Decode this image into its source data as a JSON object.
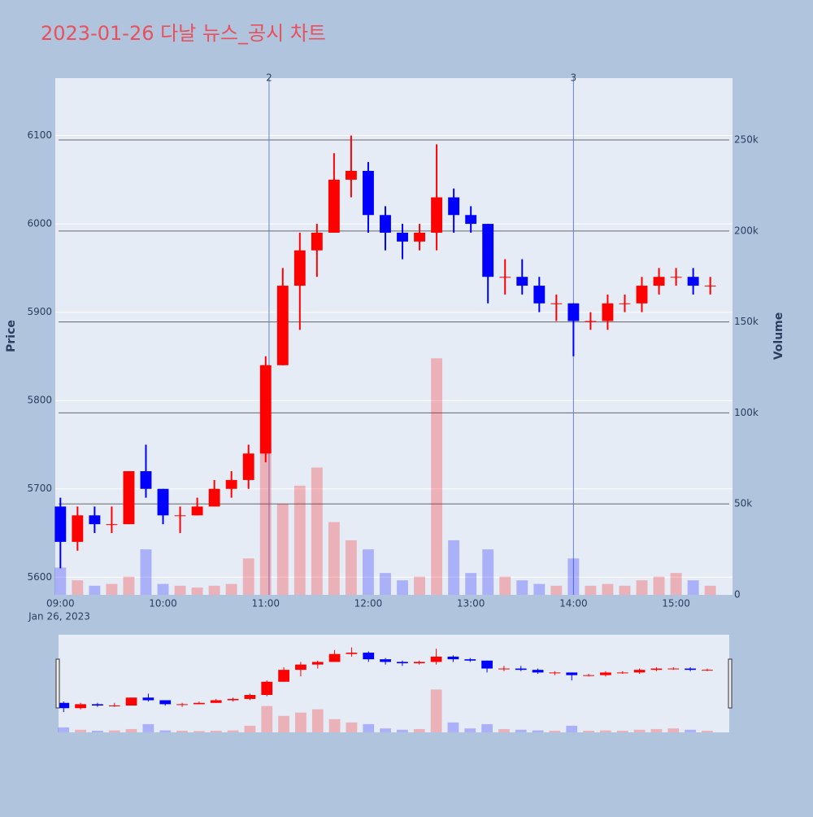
{
  "chart_data": {
    "type": "candlestick",
    "title": "2023-01-26 다날 뉴스_공시 차트",
    "y_label": "Price",
    "y2_label": "Volume",
    "x_date_label": "Jan 26, 2023",
    "increasing_color": "#ff0000",
    "decreasing_color": "#0000ff",
    "x": [
      "09:00",
      "09:10",
      "09:20",
      "09:30",
      "09:40",
      "09:50",
      "10:00",
      "10:10",
      "10:20",
      "10:30",
      "10:40",
      "10:50",
      "11:00",
      "11:10",
      "11:20",
      "11:30",
      "11:40",
      "11:50",
      "12:00",
      "12:10",
      "12:20",
      "12:30",
      "12:40",
      "12:50",
      "13:00",
      "13:10",
      "13:20",
      "13:30",
      "13:40",
      "13:50",
      "14:00",
      "14:10",
      "14:20",
      "14:30",
      "14:40",
      "14:50",
      "15:00",
      "15:10",
      "15:20"
    ],
    "open": [
      5680,
      5640,
      5670,
      5660,
      5660,
      5720,
      5700,
      5670,
      5670,
      5680,
      5700,
      5710,
      5740,
      5840,
      5930,
      5970,
      5990,
      6050,
      6060,
      6010,
      5990,
      5980,
      5990,
      6030,
      6010,
      6000,
      5940,
      5940,
      5930,
      5910,
      5910,
      5890,
      5890,
      5910,
      5910,
      5930,
      5940,
      5940,
      5930
    ],
    "high": [
      5690,
      5680,
      5680,
      5680,
      5720,
      5750,
      5700,
      5680,
      5690,
      5710,
      5720,
      5750,
      5850,
      5950,
      5990,
      6000,
      6080,
      6100,
      6070,
      6020,
      6000,
      6000,
      6090,
      6040,
      6020,
      6000,
      5960,
      5960,
      5940,
      5920,
      5910,
      5900,
      5920,
      5920,
      5940,
      5950,
      5950,
      5950,
      5940
    ],
    "low": [
      5610,
      5630,
      5650,
      5650,
      5660,
      5690,
      5660,
      5650,
      5670,
      5680,
      5690,
      5700,
      5730,
      5840,
      5880,
      5940,
      5990,
      6030,
      5990,
      5970,
      5960,
      5970,
      5970,
      5990,
      5990,
      5910,
      5920,
      5920,
      5900,
      5890,
      5850,
      5880,
      5880,
      5900,
      5900,
      5920,
      5930,
      5920,
      5920
    ],
    "close": [
      5640,
      5670,
      5660,
      5660,
      5720,
      5700,
      5670,
      5670,
      5680,
      5700,
      5710,
      5740,
      5840,
      5930,
      5970,
      5990,
      6050,
      6060,
      6010,
      5990,
      5980,
      5990,
      6030,
      6010,
      6000,
      5940,
      5940,
      5930,
      5910,
      5910,
      5890,
      5890,
      5910,
      5910,
      5930,
      5940,
      5940,
      5930,
      5930
    ],
    "volume": [
      15000,
      8000,
      5000,
      6000,
      10000,
      25000,
      6000,
      5000,
      4000,
      5000,
      6000,
      20000,
      80000,
      50000,
      60000,
      70000,
      40000,
      30000,
      25000,
      12000,
      8000,
      10000,
      130000,
      30000,
      12000,
      25000,
      10000,
      8000,
      6000,
      5000,
      20000,
      5000,
      6000,
      5000,
      8000,
      10000,
      12000,
      8000,
      5000
    ],
    "xlim": [
      "08:57",
      "15:33"
    ],
    "xticks": [
      "09:00",
      "10:00",
      "11:00",
      "12:00",
      "13:00",
      "14:00",
      "15:00"
    ],
    "ylim": [
      5580,
      6165
    ],
    "yticks": [
      5600,
      5700,
      5800,
      5900,
      6000,
      6100
    ],
    "y2lim": [
      0,
      284000
    ],
    "y2ticks": [
      0,
      {
        "value": 50000,
        "label": "50k"
      },
      {
        "value": 100000,
        "label": "100k"
      },
      {
        "value": 150000,
        "label": "150k"
      },
      {
        "value": 200000,
        "label": "200k"
      },
      {
        "value": 250000,
        "label": "250k"
      }
    ],
    "annotations": [
      {
        "x": "11:02",
        "text": "2"
      },
      {
        "x": "14:00",
        "text": "3"
      }
    ],
    "grid": true
  }
}
